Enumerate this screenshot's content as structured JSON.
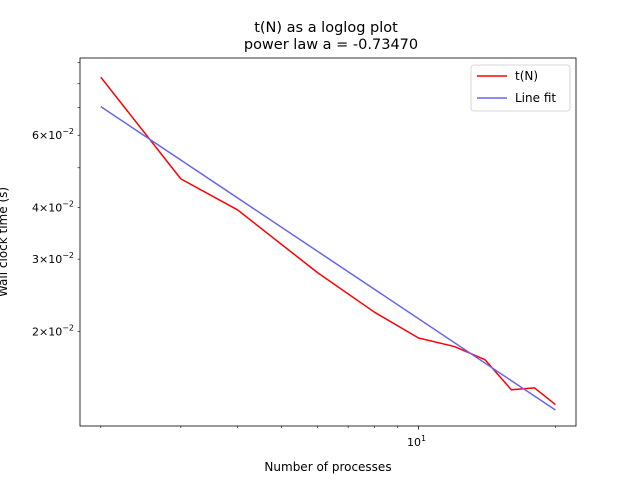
{
  "chart_data": {
    "type": "line",
    "title_line1": "t(N) as a loglog plot",
    "title_line2": "power law a = -0.73470",
    "xlabel": "Number of processes",
    "ylabel": "Wall clock time (s)",
    "xscale": "log",
    "yscale": "log",
    "xlim": [
      1.8,
      22.2
    ],
    "ylim": [
      0.0118,
      0.0924
    ],
    "grid": false,
    "legend_position": "top-right",
    "x_major_ticks": [
      {
        "value": 10,
        "base": "10",
        "exp": "1"
      }
    ],
    "y_ticks": [
      {
        "value": 0.02,
        "mant": "2",
        "exp": "−2"
      },
      {
        "value": 0.03,
        "mant": "3",
        "exp": "−2"
      },
      {
        "value": 0.04,
        "mant": "4",
        "exp": "−2"
      },
      {
        "value": 0.06,
        "mant": "6",
        "exp": "−2"
      }
    ],
    "series": [
      {
        "name": "t(N)",
        "color": "#ff0000",
        "x": [
          2,
          3,
          4,
          6,
          8,
          10,
          12,
          14,
          16,
          18,
          20
        ],
        "y": [
          0.083,
          0.047,
          0.0395,
          0.0278,
          0.0223,
          0.0193,
          0.0184,
          0.0171,
          0.01445,
          0.0146,
          0.0133
        ]
      },
      {
        "name": "Line fit",
        "color": "#6666ee",
        "x": [
          2,
          20
        ],
        "y": [
          0.0704,
          0.0129
        ]
      }
    ]
  }
}
